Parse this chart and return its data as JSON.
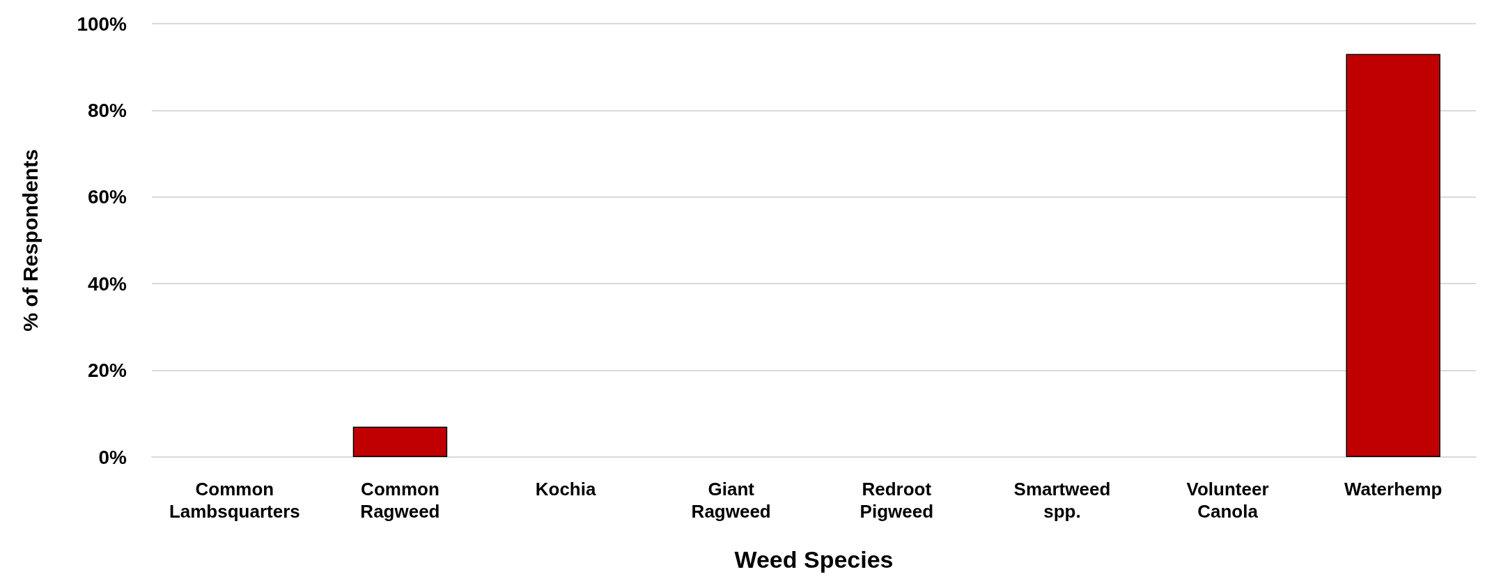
{
  "chart_data": {
    "type": "bar",
    "xlabel": "Weed Species",
    "ylabel": "% of Respondents",
    "categories": [
      "Common Lambsquarters",
      "Common Ragweed",
      "Kochia",
      "Giant Ragweed",
      "Redroot Pigweed",
      "Smartweed spp.",
      "Volunteer Canola",
      "Waterhemp"
    ],
    "values": [
      0,
      7,
      0,
      0,
      0,
      0,
      0,
      93
    ],
    "color": "#c00000",
    "ylim": [
      0,
      100
    ],
    "yticks": [
      {
        "value": 0,
        "label": "0%"
      },
      {
        "value": 20,
        "label": "20%"
      },
      {
        "value": 40,
        "label": "40%"
      },
      {
        "value": 60,
        "label": "60%"
      },
      {
        "value": 80,
        "label": "80%"
      },
      {
        "value": 100,
        "label": "100%"
      }
    ],
    "grid": "y"
  }
}
